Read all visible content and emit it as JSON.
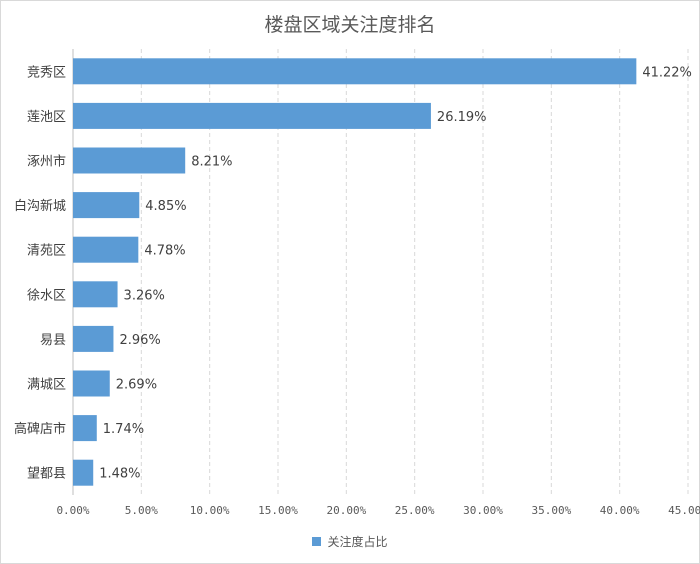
{
  "chart_data": {
    "type": "bar",
    "orientation": "horizontal",
    "title": "楼盘区域关注度排名",
    "categories": [
      "竞秀区",
      "莲池区",
      "涿州市",
      "白沟新城",
      "清苑区",
      "徐水区",
      "易县",
      "满城区",
      "高碑店市",
      "望都县"
    ],
    "series": [
      {
        "name": "关注度占比",
        "values": [
          41.22,
          26.19,
          8.21,
          4.85,
          4.78,
          3.26,
          2.96,
          2.69,
          1.74,
          1.48
        ],
        "labels": [
          "41.22%",
          "26.19%",
          "8.21%",
          "4.85%",
          "4.78%",
          "3.26%",
          "2.96%",
          "2.69%",
          "1.74%",
          "1.48%"
        ],
        "color": "#5B9BD5"
      }
    ],
    "xlim": [
      0,
      45
    ],
    "xticks": [
      0,
      5,
      10,
      15,
      20,
      25,
      30,
      35,
      40,
      45
    ],
    "xtick_labels": [
      "0.00%",
      "5.00%",
      "10.00%",
      "15.00%",
      "20.00%",
      "25.00%",
      "30.00%",
      "35.00%",
      "40.00%",
      "45.00%"
    ],
    "grid": "vertical-dashed",
    "legend": "bottom-center"
  }
}
